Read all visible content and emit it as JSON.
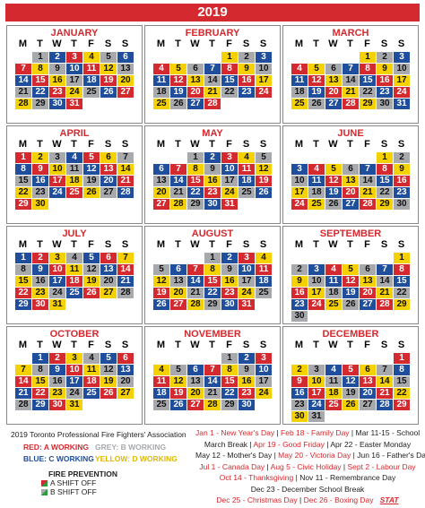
{
  "header": {
    "title": "2019"
  },
  "weekdays": [
    "M",
    "T",
    "W",
    "T",
    "F",
    "S",
    "S"
  ],
  "shift_colors": {
    "A": "#d42a2f",
    "B": "#a7a9ac",
    "C": "#1f4e9c",
    "D": "#f5d100"
  },
  "months": [
    {
      "name": "JANUARY",
      "days": [
        1,
        2,
        3,
        4,
        5,
        6,
        7,
        8,
        9,
        10,
        11,
        12,
        13,
        14,
        15,
        16,
        17,
        18,
        19,
        20,
        21,
        22,
        23,
        24,
        25,
        26,
        27,
        28,
        29,
        30,
        31
      ],
      "shifts": "BCADBCADBCADBCADBCADBCADBCADBCA"
    },
    {
      "name": "FEBRUARY",
      "days": [
        1,
        2,
        3,
        4,
        5,
        6,
        7,
        8,
        9,
        10,
        11,
        12,
        13,
        14,
        15,
        16,
        17,
        18,
        19,
        20,
        21,
        22,
        23,
        24,
        25,
        26,
        27,
        28
      ],
      "shifts": "DBCADBCADBCADBCADBCADBCADBCA"
    },
    {
      "name": "MARCH",
      "days": [
        1,
        2,
        3,
        4,
        5,
        6,
        7,
        8,
        9,
        10,
        11,
        12,
        13,
        14,
        15,
        16,
        17,
        18,
        19,
        20,
        21,
        22,
        23,
        24,
        25,
        26,
        27,
        28,
        29,
        30,
        31
      ],
      "shifts": "DBCADBCADBCADBCADBCADBCADBCADBC"
    },
    {
      "name": "APRIL",
      "days": [
        1,
        2,
        3,
        4,
        5,
        6,
        7,
        8,
        9,
        10,
        11,
        12,
        13,
        14,
        15,
        16,
        17,
        18,
        19,
        20,
        21,
        22,
        23,
        24,
        25,
        26,
        27,
        28,
        29,
        30
      ],
      "shifts": "ADBCADBCADBCADBCADBCADBCADBCAD"
    },
    {
      "name": "MAY",
      "days": [
        1,
        2,
        3,
        4,
        5,
        6,
        7,
        8,
        9,
        10,
        11,
        12,
        13,
        14,
        15,
        16,
        17,
        18,
        19,
        20,
        21,
        22,
        23,
        24,
        25,
        26,
        27,
        28,
        29,
        30,
        31
      ],
      "shifts": "BCADBCADBCADBCADBCADBCADBCADBCA"
    },
    {
      "name": "JUNE",
      "days": [
        1,
        2,
        3,
        4,
        5,
        6,
        7,
        8,
        9,
        10,
        11,
        12,
        13,
        14,
        15,
        16,
        17,
        18,
        19,
        20,
        21,
        22,
        23,
        24,
        25,
        26,
        27,
        28,
        29,
        30
      ],
      "shifts": "DBCADBCADBCADBCADBCADBCADBCADB"
    },
    {
      "name": "JULY",
      "days": [
        1,
        2,
        3,
        4,
        5,
        6,
        7,
        8,
        9,
        10,
        11,
        12,
        13,
        14,
        15,
        16,
        17,
        18,
        19,
        20,
        21,
        22,
        23,
        24,
        25,
        26,
        27,
        28,
        29,
        30,
        31
      ],
      "shifts": "CADBCADBCADBCADBCADBCADBCADBCAD"
    },
    {
      "name": "AUGUST",
      "days": [
        1,
        2,
        3,
        4,
        5,
        6,
        7,
        8,
        9,
        10,
        11,
        12,
        13,
        14,
        15,
        16,
        17,
        18,
        19,
        20,
        21,
        22,
        23,
        24,
        25,
        26,
        27,
        28,
        29,
        30,
        31
      ],
      "shifts": "BCADBCADBCADBCADBCADBCADBCADBCA"
    },
    {
      "name": "SEPTEMBER",
      "days": [
        1,
        2,
        3,
        4,
        5,
        6,
        7,
        8,
        9,
        10,
        11,
        12,
        13,
        14,
        15,
        16,
        17,
        18,
        19,
        20,
        21,
        22,
        23,
        24,
        25,
        26,
        27,
        28,
        29,
        30
      ],
      "shifts": "DBCADBCADBCADBCADBCADBCADBCADB"
    },
    {
      "name": "OCTOBER",
      "days": [
        1,
        2,
        3,
        4,
        5,
        6,
        7,
        8,
        9,
        10,
        11,
        12,
        13,
        14,
        15,
        16,
        17,
        18,
        19,
        20,
        21,
        22,
        23,
        24,
        25,
        26,
        27,
        28,
        29,
        30,
        31
      ],
      "shifts": "CADBCADBCADBCADBCADBCADBCADBCAD"
    },
    {
      "name": "NOVEMBER",
      "days": [
        1,
        2,
        3,
        4,
        5,
        6,
        7,
        8,
        9,
        10,
        11,
        12,
        13,
        14,
        15,
        16,
        17,
        18,
        19,
        20,
        21,
        22,
        23,
        24,
        25,
        26,
        27,
        28,
        29,
        30
      ],
      "shifts": "BCADBCADBCADBCADBCADBCADBCADBC"
    },
    {
      "name": "DECEMBER",
      "days": [
        1,
        2,
        3,
        4,
        5,
        6,
        7,
        8,
        9,
        10,
        11,
        12,
        13,
        14,
        15,
        16,
        17,
        18,
        19,
        20,
        21,
        22,
        23,
        24,
        25,
        26,
        27,
        28,
        29,
        30,
        31
      ],
      "shifts": "ADBCADBCADBCADBCADBCADBCADBCADB"
    }
  ],
  "footer": {
    "association": "2019 Toronto Professional Fire Fighters' Association",
    "legend": [
      [
        {
          "text": "RED: A WORKING",
          "color": "#d42a2f"
        },
        {
          "text": "GREY: B WORKING",
          "color": "#a7a9ac"
        }
      ],
      [
        {
          "text": "BLUE: C WORKING",
          "color": "#1f4e9c"
        },
        {
          "text": "YELLOW: D WORKING",
          "color": "#e0b800"
        }
      ]
    ],
    "fire_prevention": {
      "title": "FIRE PREVENTION",
      "items": [
        "A SHIFT OFF",
        "B SHIFT OFF"
      ]
    },
    "holidays": [
      [
        {
          "text": "Jan 1 - New Year's Day",
          "color": "#d42a2f"
        },
        {
          "text": " | ",
          "color": "#222"
        },
        {
          "text": "Feb 18 - Family Day",
          "color": "#d42a2f"
        },
        {
          "text": " | ",
          "color": "#222"
        },
        {
          "text": "Mar 11-15 - School",
          "color": "#222"
        }
      ],
      [
        {
          "text": "March Break",
          "color": "#222"
        },
        {
          "text": " | ",
          "color": "#222"
        },
        {
          "text": "Apr 19 - Good Friday",
          "color": "#d42a2f"
        },
        {
          "text": " | ",
          "color": "#222"
        },
        {
          "text": "Apr 22 - Easter Monday",
          "color": "#222"
        }
      ],
      [
        {
          "text": "May 12 - Mother's Day",
          "color": "#222"
        },
        {
          "text": " | ",
          "color": "#222"
        },
        {
          "text": "May 20 - Victoria Day",
          "color": "#d42a2f"
        },
        {
          "text": " | ",
          "color": "#222"
        },
        {
          "text": "Jun 16 - Father's Day",
          "color": "#222"
        }
      ],
      [
        {
          "text": "Jul 1 - Canada Day",
          "color": "#d42a2f"
        },
        {
          "text": " | ",
          "color": "#222"
        },
        {
          "text": "Aug 5 - Civic Holiday",
          "color": "#d42a2f"
        },
        {
          "text": " | ",
          "color": "#222"
        },
        {
          "text": "Sept 2 - Labour Day",
          "color": "#d42a2f"
        }
      ],
      [
        {
          "text": "Oct 14 - Thanksgiving",
          "color": "#d42a2f"
        },
        {
          "text": " | ",
          "color": "#222"
        },
        {
          "text": "Nov 11 - Remembrance Day",
          "color": "#222"
        }
      ],
      [
        {
          "text": "Dec 23 - December School Break",
          "color": "#222"
        }
      ],
      [
        {
          "text": "Dec 25 - Christmas Day",
          "color": "#d42a2f"
        },
        {
          "text": " | ",
          "color": "#222"
        },
        {
          "text": "Dec 26 - Boxing Day",
          "color": "#d42a2f"
        },
        {
          "text": "   ",
          "color": "#222"
        },
        {
          "text": "STAT",
          "color": "#d42a2f"
        }
      ]
    ]
  }
}
